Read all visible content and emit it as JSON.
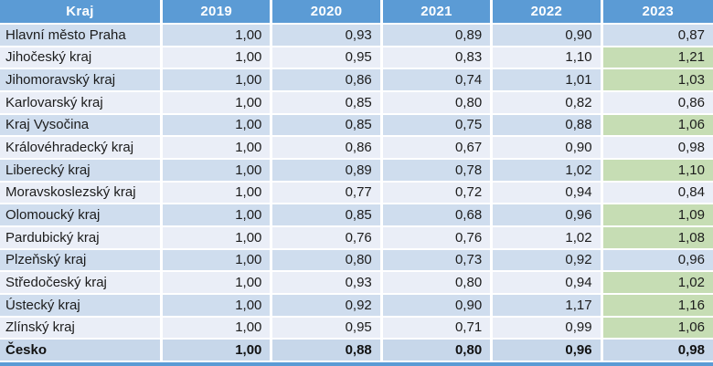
{
  "colors": {
    "header_bg": "#5b9bd5",
    "row_odd": "#cfddee",
    "row_even": "#eaeef7",
    "total_bg": "#c7d7ea",
    "highlight_green": "#c6ddb4"
  },
  "chart_data": {
    "type": "table",
    "columns": [
      "Kraj",
      "2019",
      "2020",
      "2021",
      "2022",
      "2023"
    ],
    "rows": [
      {
        "name": "Hlavní město Praha",
        "values": [
          "1,00",
          "0,93",
          "0,89",
          "0,90",
          "0,87"
        ],
        "highlight_2023": false
      },
      {
        "name": "Jihočeský kraj",
        "values": [
          "1,00",
          "0,95",
          "0,83",
          "1,10",
          "1,21"
        ],
        "highlight_2023": true
      },
      {
        "name": "Jihomoravský kraj",
        "values": [
          "1,00",
          "0,86",
          "0,74",
          "1,01",
          "1,03"
        ],
        "highlight_2023": true
      },
      {
        "name": "Karlovarský kraj",
        "values": [
          "1,00",
          "0,85",
          "0,80",
          "0,82",
          "0,86"
        ],
        "highlight_2023": false
      },
      {
        "name": "Kraj Vysočina",
        "values": [
          "1,00",
          "0,85",
          "0,75",
          "0,88",
          "1,06"
        ],
        "highlight_2023": true
      },
      {
        "name": "Královéhradecký kraj",
        "values": [
          "1,00",
          "0,86",
          "0,67",
          "0,90",
          "0,98"
        ],
        "highlight_2023": false
      },
      {
        "name": "Liberecký kraj",
        "values": [
          "1,00",
          "0,89",
          "0,78",
          "1,02",
          "1,10"
        ],
        "highlight_2023": true
      },
      {
        "name": "Moravskoslezský kraj",
        "values": [
          "1,00",
          "0,77",
          "0,72",
          "0,94",
          "0,84"
        ],
        "highlight_2023": false
      },
      {
        "name": "Olomoucký kraj",
        "values": [
          "1,00",
          "0,85",
          "0,68",
          "0,96",
          "1,09"
        ],
        "highlight_2023": true
      },
      {
        "name": "Pardubický kraj",
        "values": [
          "1,00",
          "0,76",
          "0,76",
          "1,02",
          "1,08"
        ],
        "highlight_2023": true
      },
      {
        "name": "Plzeňský kraj",
        "values": [
          "1,00",
          "0,80",
          "0,73",
          "0,92",
          "0,96"
        ],
        "highlight_2023": false
      },
      {
        "name": "Středočeský kraj",
        "values": [
          "1,00",
          "0,93",
          "0,80",
          "0,94",
          "1,02"
        ],
        "highlight_2023": true
      },
      {
        "name": "Ústecký kraj",
        "values": [
          "1,00",
          "0,92",
          "0,90",
          "1,17",
          "1,16"
        ],
        "highlight_2023": true
      },
      {
        "name": "Zlínský kraj",
        "values": [
          "1,00",
          "0,95",
          "0,71",
          "0,99",
          "1,06"
        ],
        "highlight_2023": true
      }
    ],
    "total_row": {
      "name": "Česko",
      "values": [
        "1,00",
        "0,88",
        "0,80",
        "0,96",
        "0,98"
      ],
      "highlight_2023": false
    }
  }
}
